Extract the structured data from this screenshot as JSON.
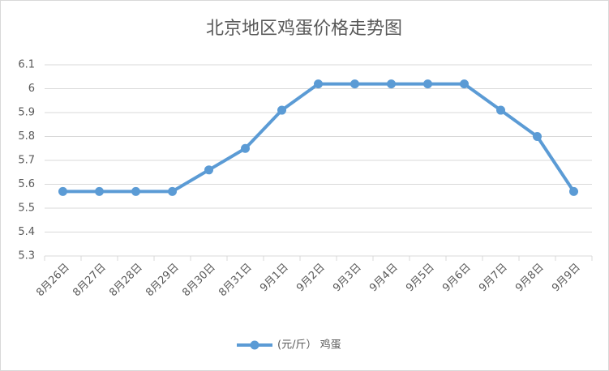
{
  "chart_data": {
    "type": "line",
    "title": "北京地区鸡蛋价格走势图",
    "categories": [
      "8月26日",
      "8月27日",
      "8月28日",
      "8月29日",
      "8月30日",
      "8月31日",
      "9月1日",
      "9月2日",
      "9月3日",
      "9月4日",
      "9月5日",
      "9月6日",
      "9月7日",
      "9月8日",
      "9月9日"
    ],
    "series": [
      {
        "name": "(元/斤） 鸡蛋",
        "color": "#5b9bd5",
        "values": [
          5.57,
          5.57,
          5.57,
          5.57,
          5.66,
          5.75,
          5.91,
          6.02,
          6.02,
          6.02,
          6.02,
          6.02,
          5.91,
          5.8,
          5.57
        ]
      }
    ],
    "ylim": [
      5.3,
      6.1
    ],
    "yticks": [
      5.3,
      5.4,
      5.5,
      5.6,
      5.7,
      5.8,
      5.9,
      6,
      6.1
    ],
    "grid": true,
    "legend": "bottom"
  }
}
